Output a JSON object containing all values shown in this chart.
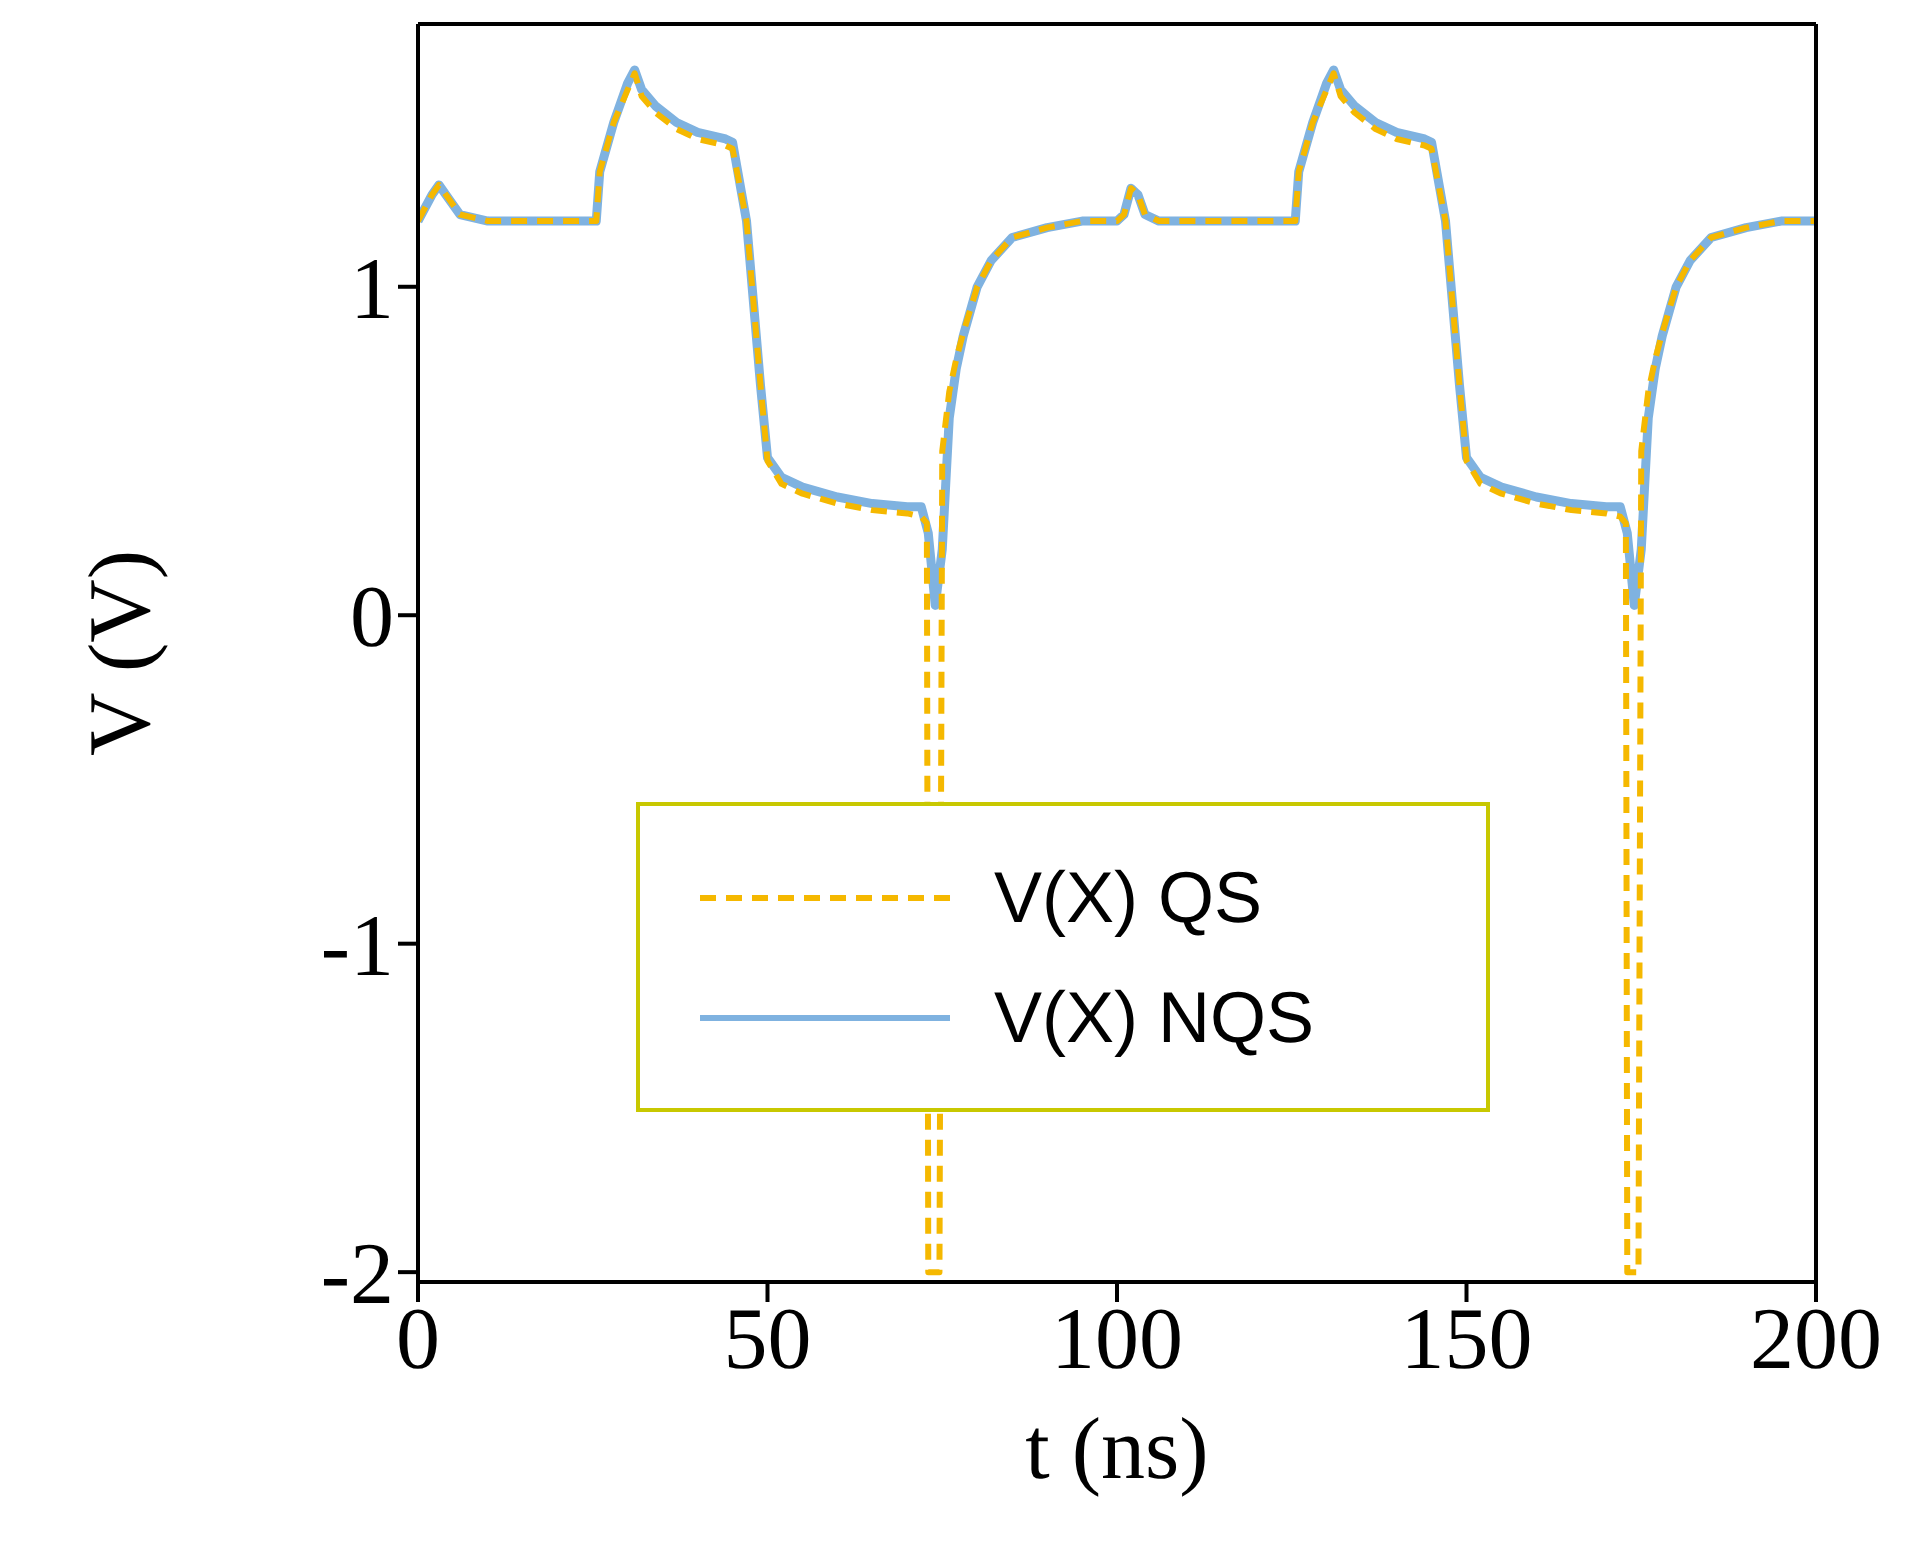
{
  "chart_data": {
    "type": "line",
    "xlabel": "t (ns)",
    "ylabel": "V (V)",
    "xlim": [
      0,
      200
    ],
    "xticks": [
      0,
      50,
      100,
      150,
      200
    ],
    "ylim": [
      -2.03,
      1.8
    ],
    "yticks": [
      -2,
      -1,
      0,
      1
    ],
    "legend": "bottom",
    "grid": false,
    "series": [
      {
        "name": "V(X) QS",
        "color": "#f5b800",
        "line_style": "dashed",
        "x": [
          0,
          2,
          3,
          4,
          6,
          10,
          25.5,
          26,
          28,
          30,
          31,
          32,
          34,
          37,
          40,
          44,
          45,
          47,
          49,
          50,
          52,
          55,
          60,
          65,
          70,
          72,
          72.8,
          73,
          74.6,
          75,
          76,
          77,
          78,
          80,
          82,
          85,
          90,
          95,
          100,
          101,
          102,
          103,
          104,
          106,
          110,
          125.5,
          126,
          128,
          130,
          131,
          132,
          134,
          137,
          140,
          144,
          145,
          147,
          149,
          150,
          152,
          155,
          160,
          165,
          170,
          172,
          172.8,
          173,
          174.6,
          175,
          176,
          177,
          178,
          180,
          182,
          185,
          190,
          195,
          200
        ],
        "values": [
          1.2,
          1.28,
          1.31,
          1.28,
          1.22,
          1.2,
          1.2,
          1.35,
          1.5,
          1.6,
          1.65,
          1.58,
          1.53,
          1.48,
          1.45,
          1.43,
          1.42,
          1.2,
          0.7,
          0.47,
          0.4,
          0.37,
          0.34,
          0.32,
          0.31,
          0.3,
          0.28,
          -2,
          -2,
          0.5,
          0.68,
          0.78,
          0.86,
          1.0,
          1.08,
          1.15,
          1.18,
          1.2,
          1.2,
          1.22,
          1.3,
          1.28,
          1.22,
          1.2,
          1.2,
          1.2,
          1.35,
          1.5,
          1.6,
          1.65,
          1.58,
          1.53,
          1.48,
          1.45,
          1.43,
          1.42,
          1.2,
          0.7,
          0.47,
          0.4,
          0.37,
          0.34,
          0.32,
          0.31,
          0.3,
          0.28,
          -2,
          -2,
          0.5,
          0.68,
          0.78,
          0.86,
          1.0,
          1.08,
          1.15,
          1.18,
          1.2,
          1.2
        ]
      },
      {
        "name": "V(X) NQS",
        "color": "#7fb2e0",
        "line_style": "solid",
        "x": [
          0,
          2,
          3,
          4,
          6,
          10,
          25.5,
          26,
          28,
          30,
          31,
          32,
          34,
          37,
          40,
          44,
          45,
          47,
          49,
          50,
          52,
          55,
          60,
          65,
          70,
          72,
          73,
          74,
          75,
          76,
          77,
          78,
          80,
          82,
          85,
          90,
          95,
          100,
          101,
          102,
          103,
          104,
          106,
          110,
          125.5,
          126,
          128,
          130,
          131,
          132,
          134,
          137,
          140,
          144,
          145,
          147,
          149,
          150,
          152,
          155,
          160,
          165,
          170,
          172,
          173,
          174,
          175,
          176,
          177,
          178,
          180,
          182,
          185,
          190,
          195,
          200
        ],
        "values": [
          1.2,
          1.28,
          1.31,
          1.28,
          1.22,
          1.2,
          1.2,
          1.35,
          1.5,
          1.62,
          1.66,
          1.6,
          1.55,
          1.5,
          1.47,
          1.45,
          1.44,
          1.2,
          0.7,
          0.48,
          0.42,
          0.39,
          0.36,
          0.34,
          0.33,
          0.33,
          0.25,
          0.03,
          0.2,
          0.6,
          0.75,
          0.85,
          1.0,
          1.08,
          1.15,
          1.18,
          1.2,
          1.2,
          1.22,
          1.3,
          1.28,
          1.22,
          1.2,
          1.2,
          1.2,
          1.35,
          1.5,
          1.62,
          1.66,
          1.6,
          1.55,
          1.5,
          1.47,
          1.45,
          1.44,
          1.2,
          0.7,
          0.48,
          0.42,
          0.39,
          0.36,
          0.34,
          0.33,
          0.33,
          0.25,
          0.03,
          0.2,
          0.6,
          0.75,
          0.85,
          1.0,
          1.08,
          1.15,
          1.18,
          1.2,
          1.2
        ]
      }
    ]
  }
}
